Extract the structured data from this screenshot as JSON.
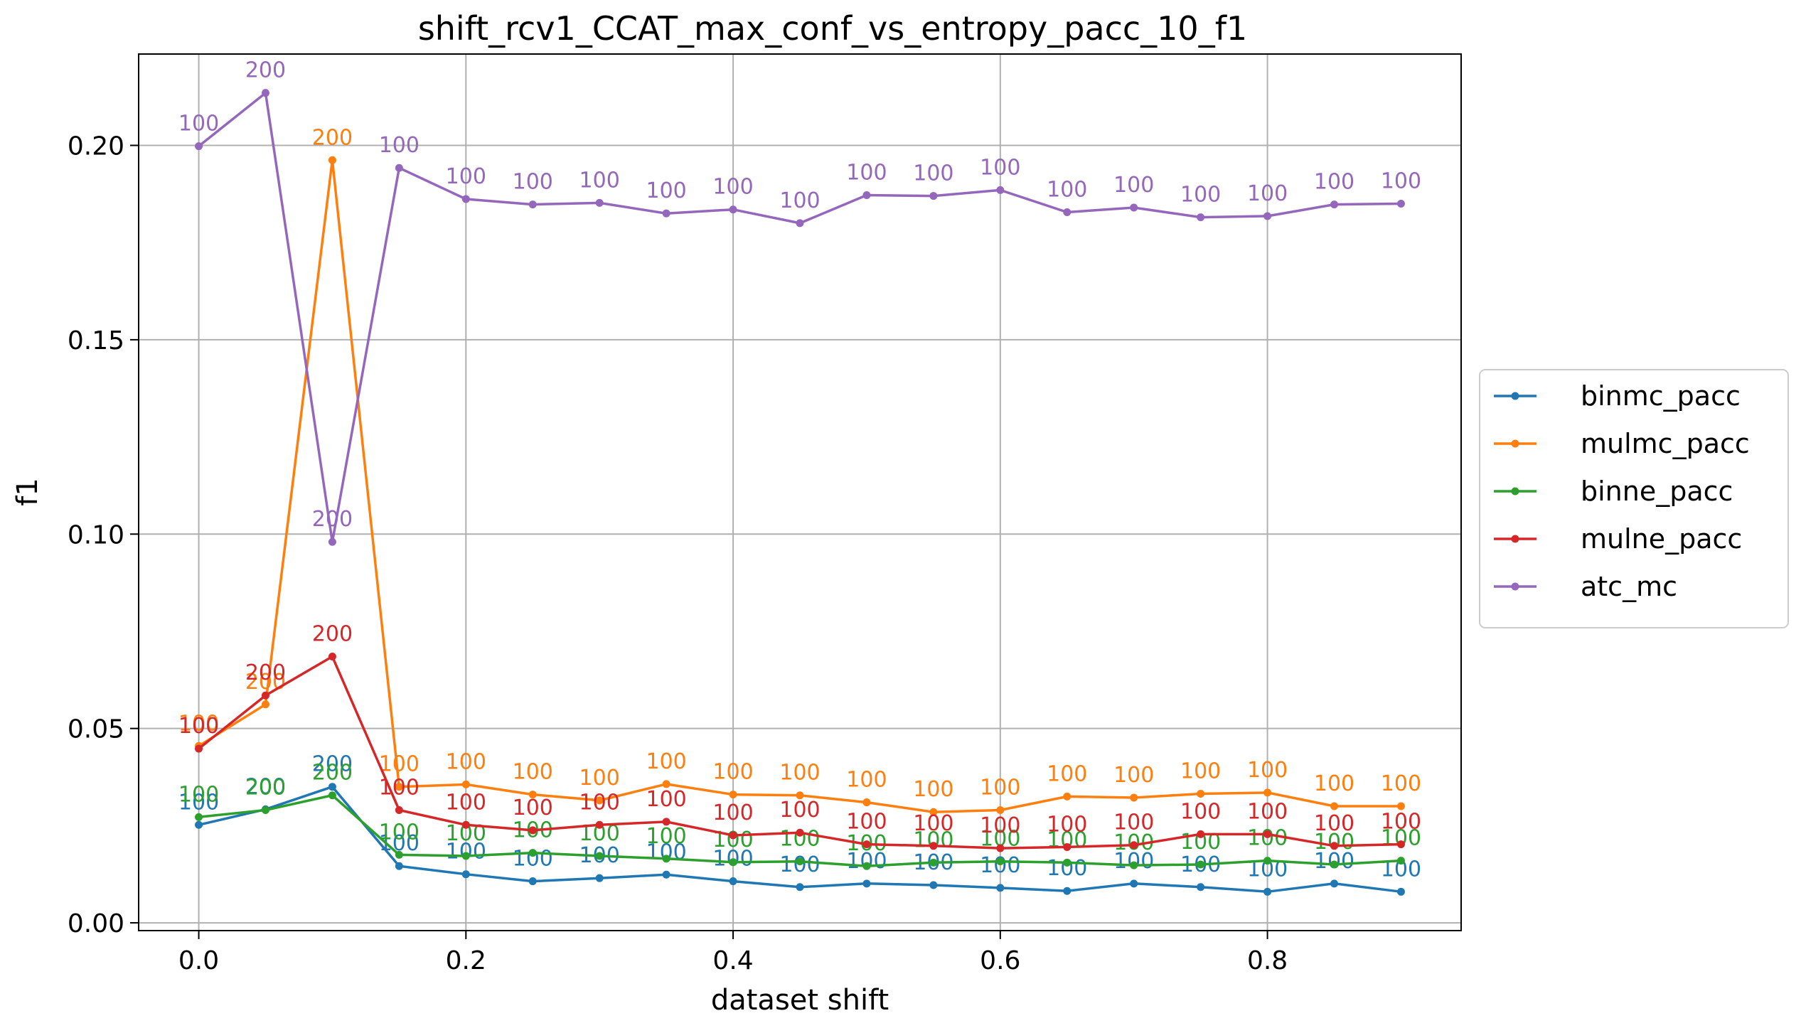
{
  "chart_data": {
    "type": "line",
    "title": "shift_rcv1_CCAT_max_conf_vs_entropy_pacc_10_f1",
    "xlabel": "dataset shift",
    "ylabel": "f1",
    "xlim": [
      -0.045,
      0.945
    ],
    "ylim": [
      -0.002,
      0.2235
    ],
    "xticks": [
      0.0,
      0.2,
      0.4,
      0.6,
      0.8
    ],
    "xtick_labels": [
      "0.0",
      "0.2",
      "0.4",
      "0.6",
      "0.8"
    ],
    "yticks": [
      0.0,
      0.05,
      0.1,
      0.15,
      0.2
    ],
    "ytick_labels": [
      "0.00",
      "0.05",
      "0.10",
      "0.15",
      "0.20"
    ],
    "grid": true,
    "legend_position": "outside-right",
    "x": [
      0.0,
      0.05,
      0.1,
      0.15,
      0.2,
      0.25,
      0.3,
      0.35,
      0.4,
      0.45,
      0.5,
      0.55,
      0.6,
      0.65,
      0.7,
      0.75,
      0.8,
      0.85,
      0.9
    ],
    "series": [
      {
        "name": "binmc_pacc",
        "color": "#1f77b4",
        "values": [
          0.0252,
          0.0292,
          0.035,
          0.0146,
          0.0125,
          0.0107,
          0.0115,
          0.0124,
          0.0107,
          0.0092,
          0.0101,
          0.0097,
          0.009,
          0.0082,
          0.0101,
          0.0092,
          0.008,
          0.0101,
          0.008
        ],
        "labels": [
          "100",
          "200",
          "200",
          "100",
          "100",
          "100",
          "100",
          "100",
          "100",
          "100",
          "100",
          "100",
          "100",
          "100",
          "100",
          "100",
          "100",
          "100",
          "100"
        ]
      },
      {
        "name": "mulmc_pacc",
        "color": "#ff7f0e",
        "values": [
          0.0455,
          0.0562,
          0.1962,
          0.035,
          0.0356,
          0.033,
          0.0315,
          0.0357,
          0.033,
          0.0328,
          0.031,
          0.0285,
          0.029,
          0.0325,
          0.0322,
          0.0332,
          0.0335,
          0.03,
          0.03
        ],
        "labels": [
          "100",
          "200",
          "200",
          "100",
          "100",
          "100",
          "100",
          "100",
          "100",
          "100",
          "100",
          "100",
          "100",
          "100",
          "100",
          "100",
          "100",
          "100",
          "100"
        ]
      },
      {
        "name": "binne_pacc",
        "color": "#2ca02c",
        "values": [
          0.0272,
          0.029,
          0.0328,
          0.0175,
          0.0172,
          0.018,
          0.0172,
          0.0165,
          0.0156,
          0.0158,
          0.0146,
          0.0155,
          0.0158,
          0.0155,
          0.0148,
          0.015,
          0.016,
          0.015,
          0.016
        ],
        "labels": [
          "100",
          "200",
          "200",
          "100",
          "100",
          "100",
          "100",
          "100",
          "100",
          "100",
          "100",
          "100",
          "100",
          "100",
          "100",
          "100",
          "100",
          "100",
          "100"
        ]
      },
      {
        "name": "mulne_pacc",
        "color": "#d62728",
        "values": [
          0.0448,
          0.0585,
          0.0685,
          0.029,
          0.0252,
          0.0238,
          0.0252,
          0.026,
          0.0225,
          0.0232,
          0.0202,
          0.0198,
          0.0192,
          0.0195,
          0.02,
          0.0228,
          0.0228,
          0.0198,
          0.0202
        ],
        "labels": [
          "100",
          "200",
          "200",
          "100",
          "100",
          "100",
          "100",
          "100",
          "100",
          "100",
          "100",
          "100",
          "100",
          "100",
          "100",
          "100",
          "100",
          "100",
          "100"
        ]
      },
      {
        "name": "atc_mc",
        "color": "#9467bd",
        "values": [
          0.1998,
          0.2135,
          0.098,
          0.1942,
          0.1862,
          0.1848,
          0.1852,
          0.1825,
          0.1835,
          0.18,
          0.1872,
          0.187,
          0.1885,
          0.1828,
          0.184,
          0.1815,
          0.1818,
          0.1848,
          0.185
        ],
        "labels": [
          "100",
          "200",
          "200",
          "100",
          "100",
          "100",
          "100",
          "100",
          "100",
          "100",
          "100",
          "100",
          "100",
          "100",
          "100",
          "100",
          "100",
          "100",
          "100"
        ]
      }
    ]
  }
}
